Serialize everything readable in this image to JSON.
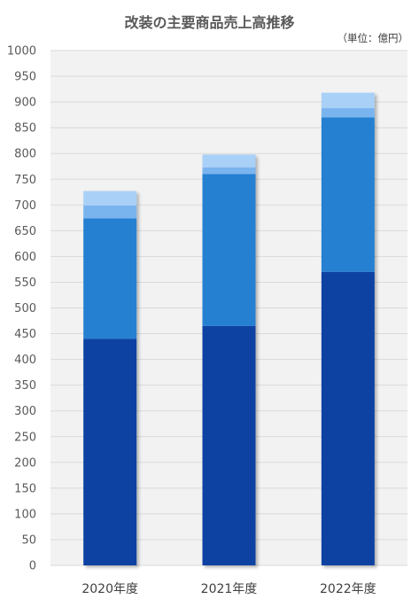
{
  "title": "改装の主要商品売上高推移",
  "unit_note": "（単位：億円）",
  "colors": {
    "plot_bg": "#f2f2f2",
    "grid": "#d9d9d9",
    "series": [
      "#0a43a3",
      "#2780d2",
      "#7ab4ef",
      "#a9d0f7"
    ]
  },
  "chart_data": {
    "type": "bar",
    "stacked": true,
    "title": "改装の主要商品売上高推移",
    "categories": [
      "2020年度",
      "2021年度",
      "2022年度"
    ],
    "series": [
      {
        "values": [
          440,
          465,
          570
        ]
      },
      {
        "values": [
          234,
          295,
          300
        ]
      },
      {
        "values": [
          25,
          13,
          18
        ]
      },
      {
        "values": [
          28,
          25,
          30
        ]
      }
    ],
    "ylim": [
      0,
      1000
    ],
    "ytick_step": 50,
    "grid": true,
    "legend": "none"
  }
}
